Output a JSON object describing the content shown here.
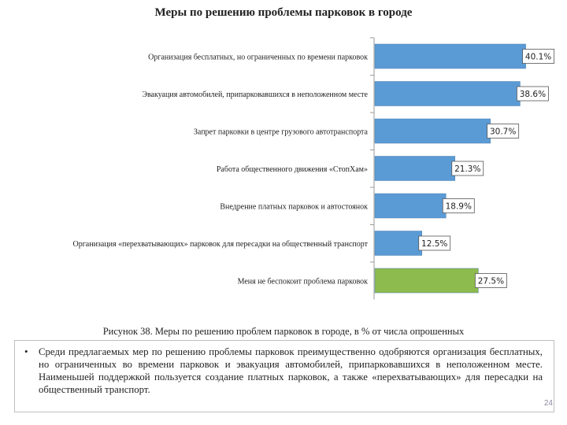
{
  "chart_data": {
    "type": "bar",
    "orientation": "horizontal",
    "title": "Меры по решению проблемы парковок в городе",
    "categories": [
      "Организация бесплатных, но ограниченных по времени парковок",
      "Эвакуация автомобилей, припарковавшихся в неположенном месте",
      "Запрет парковки в центре грузового автотранспорта",
      "Работа общественного движения «СтопХам»",
      "Внедрение платных парковок и автостоянок",
      "Организация «перехватывающих» парковок для пересадки на общественный транспорт",
      "Меня не беспокоит проблема парковок"
    ],
    "values": [
      40.1,
      38.6,
      30.7,
      21.3,
      18.9,
      12.5,
      27.5
    ],
    "value_labels": [
      "40.1%",
      "38.6%",
      "30.7%",
      "21.3%",
      "18.9%",
      "12.5%",
      "27.5%"
    ],
    "unit": "%",
    "xlim": [
      0,
      45
    ],
    "colors": [
      "#5b9bd5",
      "#5b9bd5",
      "#5b9bd5",
      "#5b9bd5",
      "#5b9bd5",
      "#5b9bd5",
      "#8dbb4d"
    ],
    "grid": false,
    "legend": "none"
  },
  "caption": "Рисунок 38. Меры по решению проблем парковок в городе, в % от числа опрошенных",
  "bullet": {
    "symbol": "•",
    "text": "Среди предлагаемых мер по решению проблемы парковок преимущественно одобряются организация бесплатных, но ограниченных во времени парковок и эвакуация автомобилей, припарковавшихся в неположенном месте. Наименьшей поддержкой пользуется создание платных парковок, а также «перехватывающих» для пересадки на общественный транспорт."
  },
  "page_number": "24"
}
